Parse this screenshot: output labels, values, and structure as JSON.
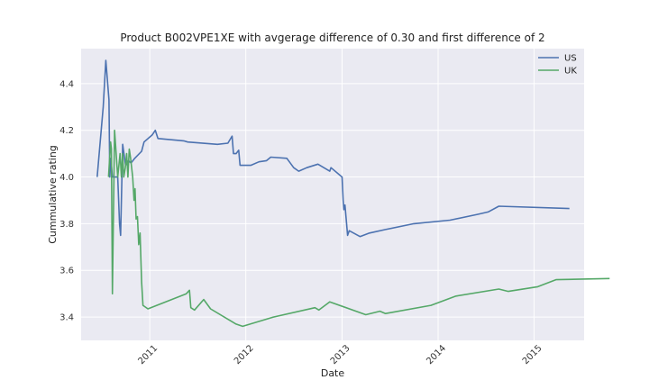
{
  "chart_data": {
    "type": "line",
    "title": "Product B002VPE1XE with avgerage difference of 0.30 and first difference of 2",
    "xlabel": "Date",
    "ylabel": "Cummulative rating",
    "xlim": [
      "2010-04-15",
      "2015-07-10"
    ],
    "ylim": [
      3.3,
      4.55
    ],
    "x_ticks": [
      "2011-01-01",
      "2012-01-01",
      "2013-01-01",
      "2014-01-01",
      "2015-01-01"
    ],
    "x_tick_labels": [
      "2011",
      "2012",
      "2013",
      "2014",
      "2015"
    ],
    "y_ticks": [
      3.4,
      3.6,
      3.8,
      4.0,
      4.2,
      4.4
    ],
    "y_tick_labels": [
      "3.4",
      "3.6",
      "3.8",
      "4.0",
      "4.2",
      "4.4"
    ],
    "grid": true,
    "legend_position": "top-right",
    "series": [
      {
        "name": "US",
        "color": "#4c72b0",
        "points": [
          [
            "2010-06-15",
            4.0
          ],
          [
            "2010-07-08",
            4.3
          ],
          [
            "2010-07-18",
            4.5
          ],
          [
            "2010-07-30",
            4.33
          ],
          [
            "2010-08-02",
            4.0
          ],
          [
            "2010-08-06",
            4.08
          ],
          [
            "2010-08-12",
            4.0
          ],
          [
            "2010-09-01",
            4.0
          ],
          [
            "2010-09-08",
            3.8
          ],
          [
            "2010-09-12",
            3.75
          ],
          [
            "2010-09-20",
            4.14
          ],
          [
            "2010-10-01",
            4.05
          ],
          [
            "2010-10-12",
            4.07
          ],
          [
            "2010-10-22",
            4.06
          ],
          [
            "2010-11-05",
            4.08
          ],
          [
            "2010-12-01",
            4.11
          ],
          [
            "2010-12-10",
            4.15
          ],
          [
            "2011-01-10",
            4.18
          ],
          [
            "2011-01-22",
            4.2
          ],
          [
            "2011-02-01",
            4.165
          ],
          [
            "2011-05-10",
            4.155
          ],
          [
            "2011-05-25",
            4.15
          ],
          [
            "2011-09-15",
            4.14
          ],
          [
            "2011-10-25",
            4.145
          ],
          [
            "2011-11-10",
            4.175
          ],
          [
            "2011-11-15",
            4.1
          ],
          [
            "2011-11-25",
            4.1
          ],
          [
            "2011-12-05",
            4.115
          ],
          [
            "2011-12-10",
            4.05
          ],
          [
            "2012-01-20",
            4.05
          ],
          [
            "2012-02-20",
            4.065
          ],
          [
            "2012-03-20",
            4.07
          ],
          [
            "2012-04-05",
            4.085
          ],
          [
            "2012-06-05",
            4.08
          ],
          [
            "2012-07-01",
            4.04
          ],
          [
            "2012-07-20",
            4.025
          ],
          [
            "2012-08-20",
            4.04
          ],
          [
            "2012-10-01",
            4.055
          ],
          [
            "2012-11-15",
            4.025
          ],
          [
            "2012-11-20",
            4.04
          ],
          [
            "2013-01-01",
            4.0
          ],
          [
            "2013-01-05",
            3.9
          ],
          [
            "2013-01-08",
            3.86
          ],
          [
            "2013-01-12",
            3.88
          ],
          [
            "2013-01-18",
            3.8
          ],
          [
            "2013-01-22",
            3.75
          ],
          [
            "2013-01-28",
            3.77
          ],
          [
            "2013-03-10",
            3.745
          ],
          [
            "2013-04-15",
            3.76
          ],
          [
            "2013-06-15",
            3.775
          ],
          [
            "2013-10-01",
            3.8
          ],
          [
            "2014-02-15",
            3.815
          ],
          [
            "2014-06-01",
            3.84
          ],
          [
            "2014-07-10",
            3.85
          ],
          [
            "2014-08-20",
            3.875
          ],
          [
            "2015-05-15",
            3.865
          ]
        ]
      },
      {
        "name": "UK",
        "color": "#55a868",
        "points": [
          [
            "2010-07-28",
            4.0
          ],
          [
            "2010-08-05",
            4.15
          ],
          [
            "2010-08-08",
            4.12
          ],
          [
            "2010-08-12",
            3.5
          ],
          [
            "2010-08-20",
            4.2
          ],
          [
            "2010-09-01",
            4.0
          ],
          [
            "2010-09-10",
            4.1
          ],
          [
            "2010-09-15",
            4.0
          ],
          [
            "2010-09-20",
            4.1
          ],
          [
            "2010-09-24",
            4.0
          ],
          [
            "2010-09-30",
            4.04
          ],
          [
            "2010-10-05",
            4.1
          ],
          [
            "2010-10-10",
            4.0
          ],
          [
            "2010-10-15",
            4.12
          ],
          [
            "2010-10-20",
            4.08
          ],
          [
            "2010-10-28",
            4.0
          ],
          [
            "2010-11-02",
            3.9
          ],
          [
            "2010-11-06",
            3.95
          ],
          [
            "2010-11-10",
            3.82
          ],
          [
            "2010-11-15",
            3.83
          ],
          [
            "2010-11-20",
            3.71
          ],
          [
            "2010-11-25",
            3.76
          ],
          [
            "2010-12-01",
            3.55
          ],
          [
            "2010-12-06",
            3.45
          ],
          [
            "2010-12-25",
            3.435
          ],
          [
            "2011-05-20",
            3.5
          ],
          [
            "2011-06-01",
            3.515
          ],
          [
            "2011-06-06",
            3.44
          ],
          [
            "2011-06-20",
            3.43
          ],
          [
            "2011-07-25",
            3.475
          ],
          [
            "2011-08-20",
            3.435
          ],
          [
            "2011-11-25",
            3.37
          ],
          [
            "2011-12-20",
            3.36
          ],
          [
            "2012-04-15",
            3.4
          ],
          [
            "2012-09-20",
            3.44
          ],
          [
            "2012-10-05",
            3.43
          ],
          [
            "2012-11-15",
            3.465
          ],
          [
            "2013-04-01",
            3.41
          ],
          [
            "2013-05-25",
            3.425
          ],
          [
            "2013-06-15",
            3.415
          ],
          [
            "2013-12-05",
            3.45
          ],
          [
            "2014-03-10",
            3.49
          ],
          [
            "2014-08-20",
            3.52
          ],
          [
            "2014-09-25",
            3.51
          ],
          [
            "2015-01-15",
            3.53
          ],
          [
            "2015-03-25",
            3.56
          ],
          [
            "2015-10-15",
            3.565
          ]
        ]
      }
    ]
  }
}
